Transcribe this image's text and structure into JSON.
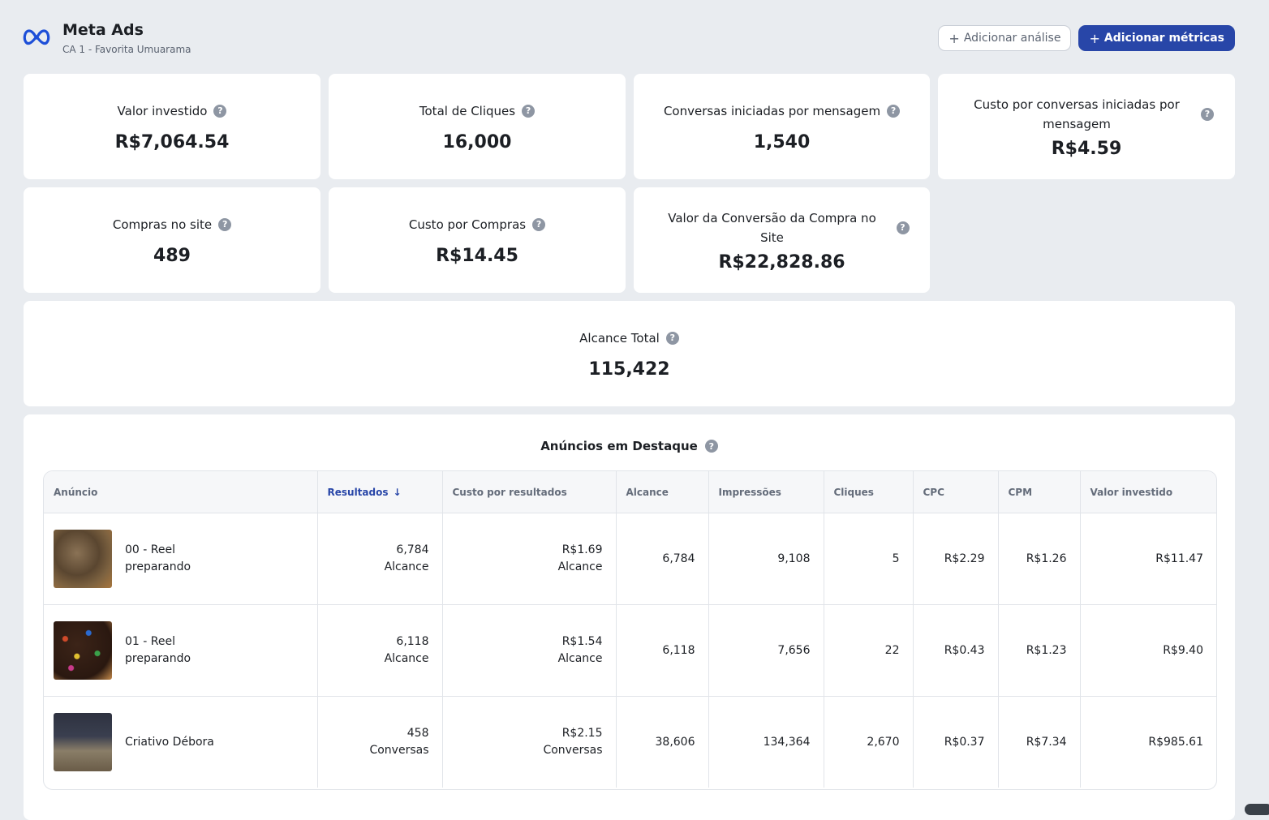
{
  "header": {
    "title": "Meta Ads",
    "subtitle": "CA 1 - Favorita Umuarama",
    "logo_icon": "meta-infinity-logo",
    "add_analysis_label": "Adicionar análise",
    "add_metrics_label": "Adicionar métricas",
    "accent_color": "#2846a8"
  },
  "metrics": [
    {
      "label": "Valor investido",
      "value": "R$7,064.54"
    },
    {
      "label": "Total de Cliques",
      "value": "16,000"
    },
    {
      "label": "Conversas iniciadas por mensagem",
      "value": "1,540"
    },
    {
      "label": "Custo por conversas iniciadas por mensagem",
      "value": "R$4.59"
    },
    {
      "label": "Compras no site",
      "value": "489"
    },
    {
      "label": "Custo por Compras",
      "value": "R$14.45"
    },
    {
      "label": "Valor da Conversão da Compra no Site",
      "value": "R$22,828.86"
    }
  ],
  "reach": {
    "label": "Alcance Total",
    "value": "115,422"
  },
  "featured": {
    "title": "Anúncios em Destaque",
    "columns": [
      "Anúncio",
      "Resultados",
      "Custo por resultados",
      "Alcance",
      "Impressões",
      "Cliques",
      "CPC",
      "CPM",
      "Valor investido"
    ],
    "sort_icon": "arrow-down-icon",
    "rows": [
      {
        "name_line1": "00 - Reel",
        "name_line2": "preparando",
        "results": "6,784",
        "results_type": "Alcance",
        "cost": "R$1.69",
        "cost_type": "Alcance",
        "reach": "6,784",
        "impressions": "9,108",
        "clicks": "5",
        "cpc": "R$2.29",
        "cpm": "R$1.26",
        "spent": "R$11.47"
      },
      {
        "name_line1": "01 - Reel",
        "name_line2": "preparando",
        "results": "6,118",
        "results_type": "Alcance",
        "cost": "R$1.54",
        "cost_type": "Alcance",
        "reach": "6,118",
        "impressions": "7,656",
        "clicks": "22",
        "cpc": "R$0.43",
        "cpm": "R$1.23",
        "spent": "R$9.40"
      },
      {
        "name_line1": "Criativo Débora",
        "name_line2": "",
        "results": "458",
        "results_type": "Conversas",
        "cost": "R$2.15",
        "cost_type": "Conversas",
        "reach": "38,606",
        "impressions": "134,364",
        "clicks": "2,670",
        "cpc": "R$0.37",
        "cpm": "R$7.34",
        "spent": "R$985.61"
      }
    ]
  }
}
